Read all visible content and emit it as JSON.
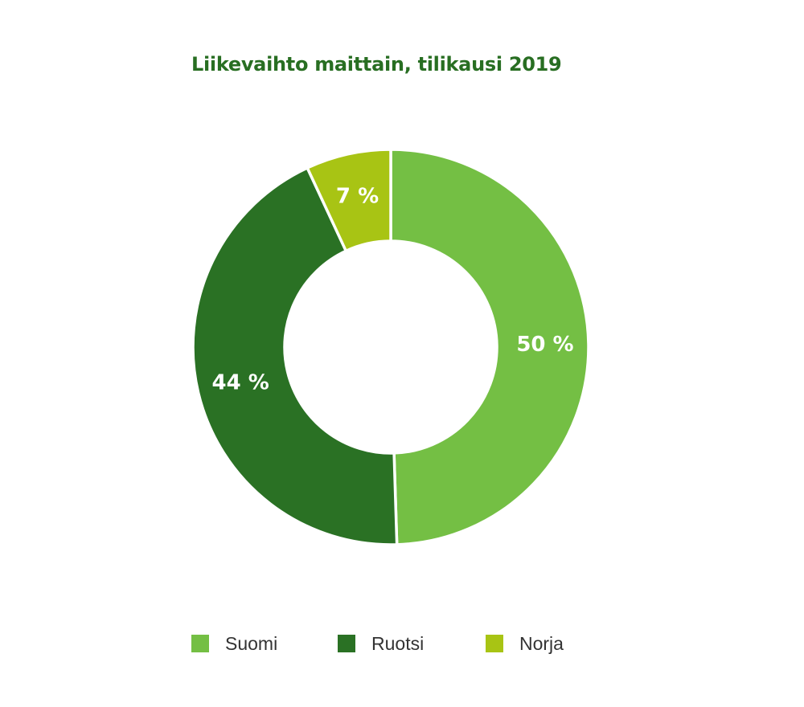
{
  "chart_data": {
    "type": "pie",
    "style": "donut",
    "title": "Liikevaihto maittain, tilikausi 2019",
    "start": "12 o'clock, clockwise",
    "slices": [
      {
        "label": "Suomi",
        "value": 50,
        "value_label": "50 %",
        "color": "#74bf44"
      },
      {
        "label": "Ruotsi",
        "value": 44,
        "value_label": "44 %",
        "color": "#2a7124"
      },
      {
        "label": "Norja",
        "value": 7,
        "value_label": "7 %",
        "color": "#a8c414"
      }
    ],
    "legend": "bottom"
  }
}
